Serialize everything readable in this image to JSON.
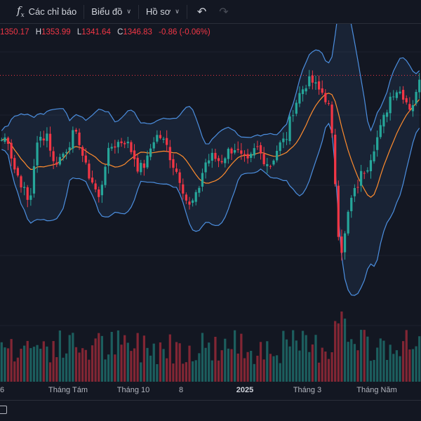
{
  "toolbar": {
    "indicators_label": "Các chỉ báo",
    "chart_label": "Biểu đồ",
    "profile_label": "Hồ sơ",
    "indicators_icon": "fx-icon",
    "undo_icon": "undo-icon",
    "redo_icon": "redo-icon"
  },
  "ohlc": {
    "open": "1350.17",
    "high_key": "H",
    "high": "1353.99",
    "low_key": "L",
    "low": "1341.64",
    "close_key": "C",
    "close": "1346.83",
    "change": "-0.86 (-0.06%)"
  },
  "xaxis": {
    "labels": [
      "6",
      "Tháng Tám",
      "Tháng 10",
      "8",
      "2025",
      "Tháng 3",
      "Tháng Năm"
    ]
  },
  "colors": {
    "background": "#131722",
    "up": "#26a69a",
    "down": "#f23645",
    "band": "#4c8fe0",
    "basis": "#ff8c2e"
  },
  "chart_data": {
    "type": "candlestick",
    "indicators": [
      "Bollinger Bands",
      "Volume"
    ],
    "price_line": "dotted red line at recent high",
    "close_path": [
      [
        0,
        1250
      ],
      [
        6,
        1255
      ],
      [
        12,
        1210
      ],
      [
        20,
        1185
      ],
      [
        28,
        1150
      ],
      [
        34,
        1235
      ],
      [
        40,
        1255
      ],
      [
        46,
        1260
      ],
      [
        52,
        1215
      ],
      [
        60,
        1225
      ],
      [
        66,
        1240
      ],
      [
        72,
        1258
      ],
      [
        78,
        1250
      ],
      [
        84,
        1210
      ],
      [
        92,
        1185
      ],
      [
        98,
        1160
      ],
      [
        104,
        1215
      ],
      [
        110,
        1240
      ],
      [
        118,
        1247
      ],
      [
        124,
        1250
      ],
      [
        132,
        1230
      ],
      [
        138,
        1205
      ],
      [
        146,
        1217
      ],
      [
        152,
        1250
      ],
      [
        158,
        1258
      ],
      [
        166,
        1240
      ],
      [
        172,
        1215
      ],
      [
        180,
        1190
      ],
      [
        188,
        1148
      ],
      [
        196,
        1165
      ],
      [
        204,
        1215
      ],
      [
        212,
        1225
      ],
      [
        220,
        1218
      ],
      [
        226,
        1230
      ],
      [
        234,
        1240
      ],
      [
        240,
        1224
      ],
      [
        248,
        1214
      ],
      [
        256,
        1240
      ],
      [
        262,
        1225
      ],
      [
        270,
        1212
      ],
      [
        278,
        1240
      ],
      [
        286,
        1252
      ],
      [
        292,
        1292
      ],
      [
        298,
        1315
      ],
      [
        306,
        1335
      ],
      [
        312,
        1338
      ],
      [
        318,
        1325
      ],
      [
        324,
        1320
      ],
      [
        330,
        1295
      ],
      [
        336,
        1175
      ],
      [
        340,
        1080
      ],
      [
        344,
        1095
      ],
      [
        350,
        1155
      ],
      [
        356,
        1175
      ],
      [
        362,
        1200
      ],
      [
        368,
        1213
      ],
      [
        374,
        1240
      ],
      [
        380,
        1262
      ],
      [
        386,
        1290
      ],
      [
        392,
        1322
      ],
      [
        398,
        1326
      ],
      [
        404,
        1318
      ],
      [
        410,
        1300
      ],
      [
        416,
        1310
      ],
      [
        420,
        1347
      ]
    ]
  }
}
